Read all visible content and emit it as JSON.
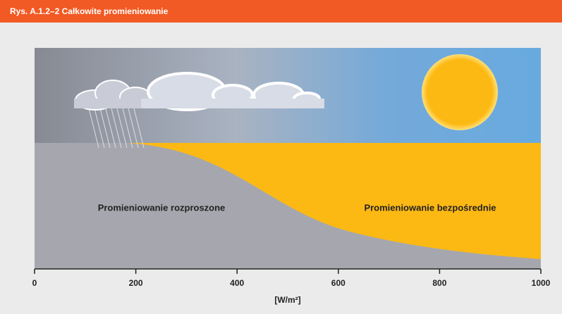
{
  "chart_data": {
    "type": "area",
    "title": "Rys. A.1.2–2   Całkowite promieniowanie",
    "xlabel": "[W/m²]",
    "xlim": [
      0,
      1000
    ],
    "xticks": [
      0,
      200,
      400,
      600,
      800,
      1000
    ],
    "annotations": [
      "Promieniowanie rozproszone",
      "Promieniowanie bezpośrednie"
    ]
  }
}
